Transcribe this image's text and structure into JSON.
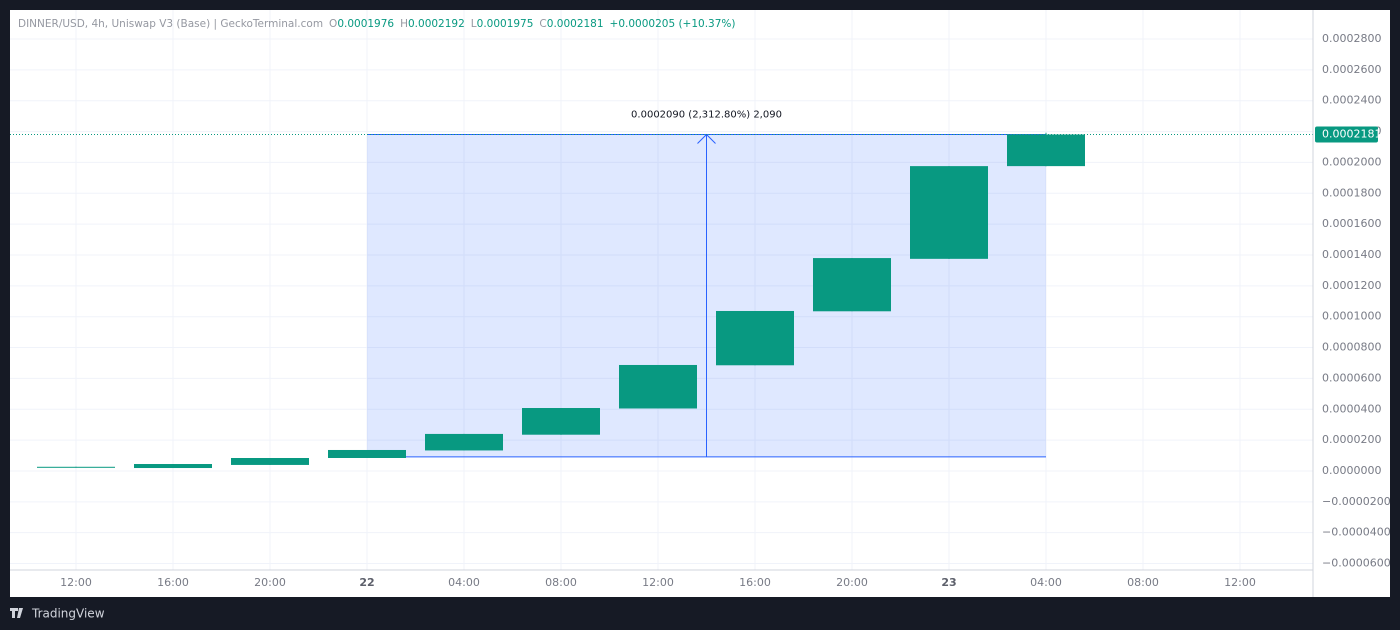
{
  "header": {
    "symbol": "DINNER/USD, 4h, Uniswap V3 (Base) | GeckoTerminal.com",
    "ohlc": [
      {
        "key": "O",
        "value": "0.0001976"
      },
      {
        "key": "H",
        "value": "0.0002192"
      },
      {
        "key": "L",
        "value": "0.0001975"
      },
      {
        "key": "C",
        "value": "0.0002181"
      }
    ],
    "change": "+0.0000205 (+10.37%)"
  },
  "footer": {
    "brand": "TradingView"
  },
  "chart_data": {
    "type": "candlestick",
    "color": "#089981",
    "categories": [
      "12:00",
      "16:00",
      "20:00",
      "22",
      "04:00",
      "08:00",
      "12:00",
      "16:00",
      "20:00",
      "23",
      "04:00",
      "08:00",
      "12:00"
    ],
    "series": [
      {
        "open": [
          2.2e-06,
          1.9e-06,
          3.9e-06,
          8.4e-06,
          1.33e-05,
          2.35e-05,
          4.05e-05,
          6.85e-05,
          0.0001035,
          0.0001375,
          0.0001976,
          null,
          null
        ],
        "high": [
          2.7e-06,
          4.5e-06,
          8.4e-06,
          1.36e-05,
          2.4e-05,
          4.08e-05,
          6.87e-05,
          0.0001037,
          0.000138,
          0.0001976,
          0.0002192,
          null,
          null
        ],
        "low": [
          2.2e-06,
          1.9e-06,
          3.9e-06,
          8.4e-06,
          1.33e-05,
          2.35e-05,
          4.05e-05,
          6.85e-05,
          0.0001035,
          0.0001375,
          0.0001975,
          null,
          null
        ],
        "close": [
          2.7e-06,
          4.5e-06,
          8.4e-06,
          1.36e-05,
          2.4e-05,
          4.08e-05,
          6.87e-05,
          0.0001037,
          0.000138,
          0.0001976,
          0.0002181,
          null,
          null
        ]
      }
    ],
    "ylim": [
      -6.42e-05,
      0.0002988
    ],
    "yticks": [
      {
        "value": 0.00028,
        "label": "0.0002800"
      },
      {
        "value": 0.00026,
        "label": "0.0002600"
      },
      {
        "value": 0.00024,
        "label": "0.0002400"
      },
      {
        "value": 0.00022,
        "label": "0.0002200"
      },
      {
        "value": 0.0002,
        "label": "0.0002000"
      },
      {
        "value": 0.00018,
        "label": "0.0001800"
      },
      {
        "value": 0.00016,
        "label": "0.0001600"
      },
      {
        "value": 0.00014,
        "label": "0.0001400"
      },
      {
        "value": 0.00012,
        "label": "0.0001200"
      },
      {
        "value": 0.0001,
        "label": "0.0001000"
      },
      {
        "value": 8e-05,
        "label": "0.0000800"
      },
      {
        "value": 6e-05,
        "label": "0.0000600"
      },
      {
        "value": 4e-05,
        "label": "0.0000400"
      },
      {
        "value": 2e-05,
        "label": "0.0000200"
      },
      {
        "value": 0,
        "label": "0.0000000"
      },
      {
        "value": -2e-05,
        "label": "−0.0000200"
      },
      {
        "value": -4e-05,
        "label": "−0.0000400"
      },
      {
        "value": -6e-05,
        "label": "−0.0000600"
      }
    ],
    "grid": true,
    "measure": {
      "label": "0.0002090 (2,312.80%) 2,090",
      "from": 3,
      "to": 10,
      "low": 9.1e-06,
      "high": 0.0002181
    }
  }
}
